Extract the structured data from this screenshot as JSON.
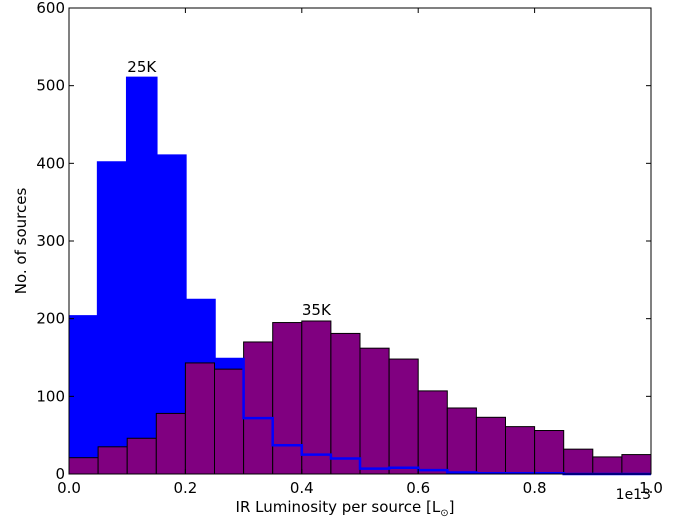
{
  "chart_data": {
    "type": "bar",
    "title": "",
    "xlabel": "IR Luminosity per source [L",
    "xlabel_subscript": "⊙",
    "xlabel_suffix": "]",
    "ylabel": "No. of sources",
    "x_offset_text": "1e13",
    "xlim": [
      0.0,
      1.0
    ],
    "ylim": [
      0,
      600
    ],
    "xticks": [
      "0.0",
      "0.2",
      "0.4",
      "0.6",
      "0.8",
      "1.0"
    ],
    "yticks": [
      "0",
      "100",
      "200",
      "300",
      "400",
      "500",
      "600"
    ],
    "bin_edges": [
      0.0,
      0.05,
      0.1,
      0.15,
      0.2,
      0.25,
      0.3,
      0.35,
      0.4,
      0.45,
      0.5,
      0.55,
      0.6,
      0.65,
      0.7,
      0.75,
      0.8,
      0.85,
      0.9,
      0.95,
      1.0
    ],
    "series": [
      {
        "label": "25K",
        "color": "#0000ff",
        "values": [
          203,
          401,
          510,
          410,
          224,
          148,
          72,
          37,
          25,
          20,
          7,
          8,
          5,
          2,
          1,
          1,
          1,
          0,
          0,
          0
        ],
        "annotation_x": 0.125,
        "annotation_y": 510
      },
      {
        "label": "35K",
        "color": "#800080",
        "values": [
          21,
          35,
          46,
          78,
          143,
          135,
          170,
          195,
          197,
          181,
          162,
          148,
          107,
          85,
          73,
          61,
          56,
          32,
          22,
          25
        ],
        "annotation_x": 0.425,
        "annotation_y": 197
      }
    ]
  }
}
